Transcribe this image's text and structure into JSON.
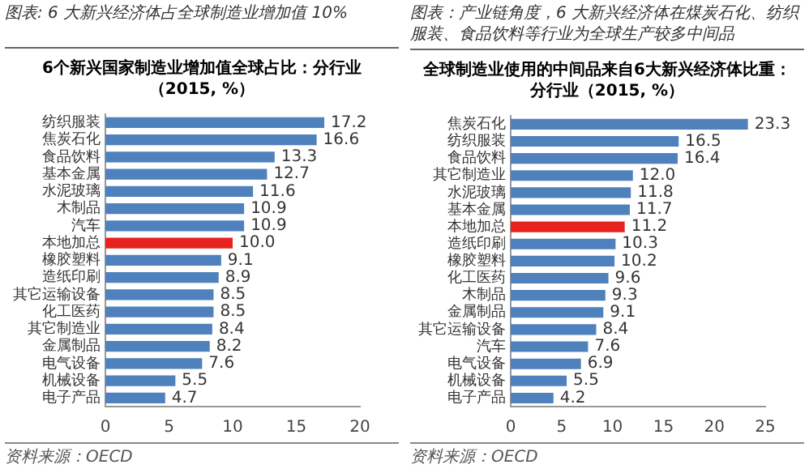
{
  "chart_data": [
    {
      "type": "bar",
      "orientation": "horizontal",
      "title": "图表: 6 大新兴经济体占全球制造业增加值 10%",
      "subtitle": "6个新兴国家制造业增加值全球占比：分行业（2015, %）",
      "categories": [
        "纺织服装",
        "焦炭石化",
        "食品饮料",
        "基本金属",
        "水泥玻璃",
        "木制品",
        "汽车",
        "本地加总",
        "橡胶塑料",
        "造纸印刷",
        "其它运输设备",
        "化工医药",
        "其它制造业",
        "金属制品",
        "电气设备",
        "机械设备",
        "电子产品"
      ],
      "values": [
        17.2,
        16.6,
        13.3,
        12.7,
        11.6,
        10.9,
        10.9,
        10.0,
        9.1,
        8.9,
        8.5,
        8.5,
        8.4,
        8.2,
        7.6,
        5.5,
        4.7
      ],
      "colors": [
        "#4f81bd",
        "#4f81bd",
        "#4f81bd",
        "#4f81bd",
        "#4f81bd",
        "#4f81bd",
        "#4f81bd",
        "#e8231f",
        "#4f81bd",
        "#4f81bd",
        "#4f81bd",
        "#4f81bd",
        "#4f81bd",
        "#4f81bd",
        "#4f81bd",
        "#4f81bd",
        "#4f81bd"
      ],
      "value_labels": [
        "17.2",
        "16.6",
        "13.3",
        "12.7",
        "11.6",
        "10.9",
        "10.9",
        "10.0",
        "9.1",
        "8.9",
        "8.5",
        "8.5",
        "8.4",
        "8.2",
        "7.6",
        "5.5",
        "4.7"
      ],
      "xlim": [
        0,
        20
      ],
      "xticks": [
        0,
        5,
        10,
        15,
        20
      ],
      "grid": false,
      "legend": false,
      "annotations": [
        "资料来源：OECD"
      ]
    },
    {
      "type": "bar",
      "orientation": "horizontal",
      "title": "图表：产业链角度，6 大新兴经济体在煤炭石化、纺织服装、食品饮料等行业为全球生产较多中间品",
      "subtitle": "全球制造业使用的中间品来自6大新兴经济体比重：分行业（2015, %）",
      "categories": [
        "焦炭石化",
        "纺织服装",
        "食品饮料",
        "其它制造业",
        "水泥玻璃",
        "基本金属",
        "本地加总",
        "造纸印刷",
        "橡胶塑料",
        "化工医药",
        "木制品",
        "金属制品",
        "其它运输设备",
        "汽车",
        "电气设备",
        "机械设备",
        "电子产品"
      ],
      "values": [
        23.3,
        16.5,
        16.4,
        12.0,
        11.8,
        11.7,
        11.2,
        10.3,
        10.2,
        9.6,
        9.3,
        9.1,
        8.4,
        7.6,
        6.9,
        5.5,
        4.2
      ],
      "colors": [
        "#4f81bd",
        "#4f81bd",
        "#4f81bd",
        "#4f81bd",
        "#4f81bd",
        "#4f81bd",
        "#e8231f",
        "#4f81bd",
        "#4f81bd",
        "#4f81bd",
        "#4f81bd",
        "#4f81bd",
        "#4f81bd",
        "#4f81bd",
        "#4f81bd",
        "#4f81bd",
        "#4f81bd"
      ],
      "value_labels": [
        "23.3",
        "16.5",
        "16.4",
        "12.0",
        "11.8",
        "11.7",
        "11.2",
        "10.3",
        "10.2",
        "9.6",
        "9.3",
        "9.1",
        "8.4",
        "7.6",
        "6.9",
        "5.5",
        "4.2"
      ],
      "xlim": [
        0,
        25
      ],
      "xticks": [
        0,
        5,
        10,
        15,
        20,
        25
      ],
      "grid": false,
      "legend": false,
      "annotations": [
        "资料来源：OECD"
      ]
    }
  ]
}
